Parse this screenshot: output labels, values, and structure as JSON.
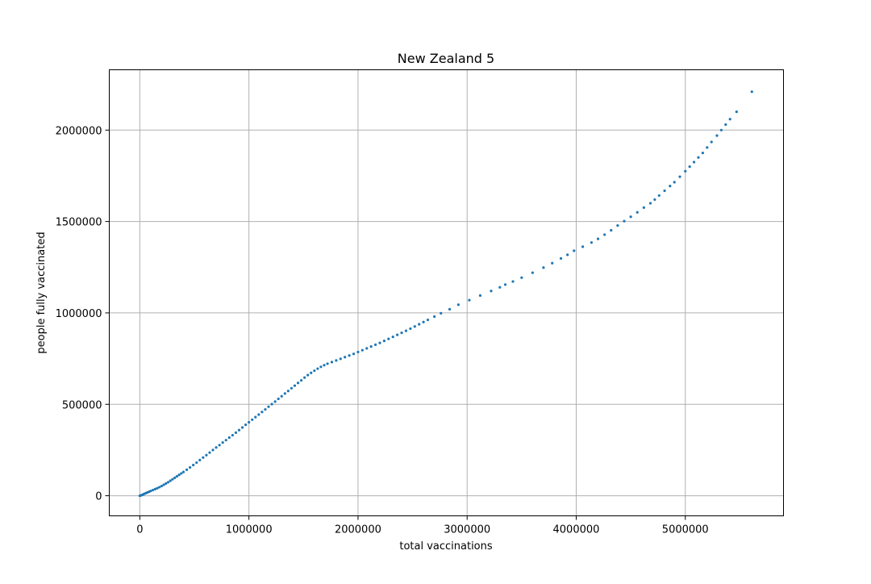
{
  "chart_data": {
    "type": "scatter",
    "title": "New Zealand 5",
    "xlabel": "total vaccinations",
    "ylabel": "people fully vaccinated",
    "xlim": [
      -280000,
      5900000
    ],
    "ylim": [
      -110000,
      2330000
    ],
    "xticks": [
      0,
      1000000,
      2000000,
      3000000,
      4000000,
      5000000
    ],
    "xtick_labels": [
      "0",
      "1000000",
      "2000000",
      "3000000",
      "4000000",
      "5000000"
    ],
    "yticks": [
      0,
      500000,
      1000000,
      1500000,
      2000000
    ],
    "ytick_labels": [
      "0",
      "500000",
      "1000000",
      "1500000",
      "2000000"
    ],
    "grid": true,
    "marker_color": "#1f77b4",
    "series": [
      {
        "x": [
          0,
          10000,
          20000,
          30000,
          40000,
          55000,
          70000,
          85000,
          100000,
          120000,
          140000,
          160000,
          180000,
          200000,
          220000,
          240000,
          260000,
          280000,
          300000,
          320000,
          340000,
          360000,
          380000,
          400000,
          430000,
          460000,
          490000,
          520000,
          550000,
          580000,
          610000,
          640000,
          670000,
          700000,
          730000,
          760000,
          790000,
          820000,
          850000,
          880000,
          910000,
          940000,
          970000,
          1000000,
          1030000,
          1060000,
          1090000,
          1120000,
          1150000,
          1180000,
          1210000,
          1240000,
          1270000,
          1300000,
          1330000,
          1360000,
          1390000,
          1420000,
          1450000,
          1480000,
          1510000,
          1540000,
          1570000,
          1600000,
          1630000,
          1660000,
          1690000,
          1720000,
          1760000,
          1800000,
          1840000,
          1880000,
          1920000,
          1960000,
          2000000,
          2040000,
          2080000,
          2120000,
          2160000,
          2200000,
          2240000,
          2280000,
          2320000,
          2360000,
          2400000,
          2440000,
          2480000,
          2520000,
          2560000,
          2600000,
          2640000,
          2700000,
          2760000,
          2840000,
          2920000,
          3020000,
          3120000,
          3220000,
          3300000,
          3350000,
          3420000,
          3500000,
          3600000,
          3700000,
          3780000,
          3860000,
          3920000,
          3980000,
          4060000,
          4140000,
          4200000,
          4260000,
          4320000,
          4380000,
          4440000,
          4500000,
          4560000,
          4620000,
          4680000,
          4720000,
          4760000,
          4810000,
          4860000,
          4900000,
          4950000,
          5000000,
          5040000,
          5080000,
          5120000,
          5160000,
          5200000,
          5240000,
          5290000,
          5330000,
          5370000,
          5410000,
          5470000,
          5610000
        ],
        "y": [
          0,
          2000,
          4000,
          7000,
          10000,
          14000,
          18000,
          22000,
          26000,
          31000,
          36000,
          41000,
          47000,
          53000,
          60000,
          67000,
          74000,
          82000,
          90000,
          98000,
          106000,
          114000,
          122000,
          130000,
          142000,
          155000,
          168000,
          181000,
          195000,
          209000,
          222000,
          236000,
          250000,
          264000,
          277000,
          291000,
          304000,
          318000,
          331000,
          345000,
          359000,
          373000,
          388000,
          402000,
          416000,
          430000,
          444000,
          458000,
          472000,
          487000,
          501000,
          515000,
          530000,
          544000,
          559000,
          573000,
          588000,
          602000,
          617000,
          631000,
          646000,
          660000,
          672000,
          684000,
          695000,
          705000,
          714000,
          722000,
          731000,
          740000,
          749000,
          758000,
          767000,
          776000,
          786000,
          796000,
          806000,
          816000,
          826000,
          836000,
          847000,
          858000,
          869000,
          880000,
          891000,
          902000,
          914000,
          926000,
          938000,
          950000,
          962000,
          980000,
          998000,
          1020000,
          1045000,
          1070000,
          1095000,
          1120000,
          1140000,
          1155000,
          1172000,
          1193000,
          1220000,
          1248000,
          1272000,
          1298000,
          1318000,
          1340000,
          1362000,
          1385000,
          1405000,
          1428000,
          1452000,
          1478000,
          1502000,
          1526000,
          1550000,
          1576000,
          1600000,
          1620000,
          1642000,
          1668000,
          1694000,
          1715000,
          1745000,
          1775000,
          1800000,
          1825000,
          1850000,
          1875000,
          1905000,
          1935000,
          1970000,
          2000000,
          2030000,
          2060000,
          2100000,
          2210000
        ]
      }
    ]
  }
}
